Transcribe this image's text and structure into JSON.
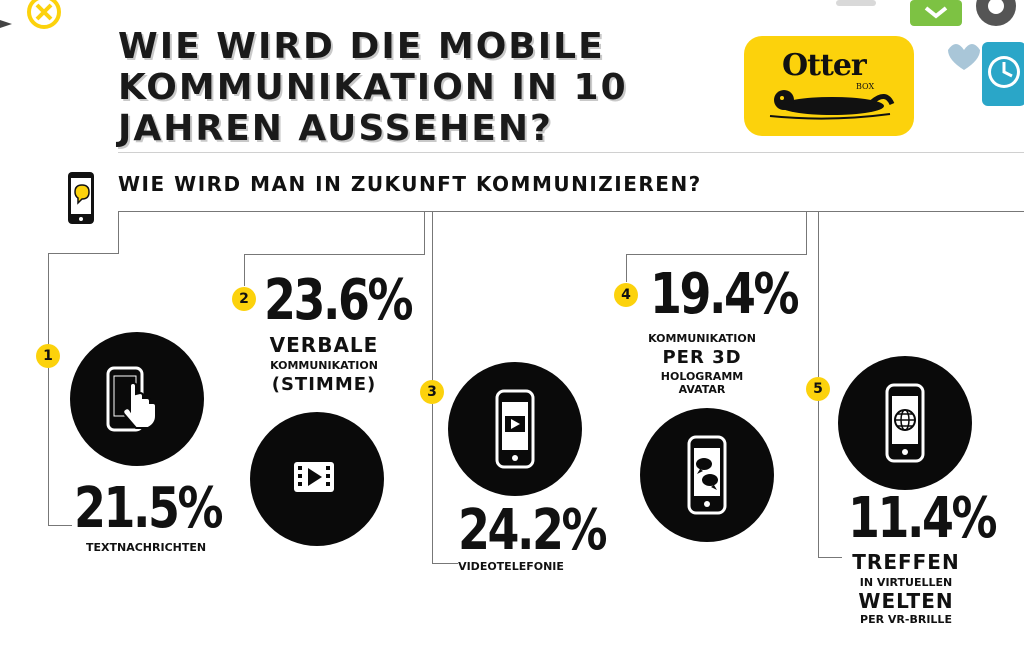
{
  "header": {
    "title_lines": [
      "WIE WIRD DIE MOBILE",
      "KOMMUNIKATION IN 10",
      "JAHREN AUSSEHEN?"
    ],
    "logo_text": "OtterBox",
    "logo_wordmark": "Otter",
    "logo_sub": "BOX"
  },
  "subtitle": "WIE WIRD MAN IN ZUKUNFT KOMMUNIZIEREN?",
  "colors": {
    "accent": "#fcd20c",
    "circle": "#0a0a0a",
    "text": "#111111"
  },
  "chart_data": {
    "type": "table",
    "title": "WIE WIRD MAN IN ZUKUNFT KOMMUNIZIEREN?",
    "series": [
      {
        "rank": "1",
        "value": 21.5,
        "value_label": "21.5%",
        "label": "TEXTNACHRICHTEN",
        "icon": "touch-phone-icon"
      },
      {
        "rank": "2",
        "value": 23.6,
        "value_label": "23.6%",
        "label_lines": [
          "VERBALE",
          "KOMMUNIKATION",
          "(STIMME)"
        ],
        "icon": "video-icon"
      },
      {
        "rank": "3",
        "value": 24.2,
        "value_label": "24.2%",
        "label": "VIDEOTELEFONIE",
        "icon": "video-phone-icon"
      },
      {
        "rank": "4",
        "value": 19.4,
        "value_label": "19.4%",
        "label_lines": [
          "KOMMUNIKATION",
          "PER 3D",
          "HOLOGRAMM",
          "AVATAR"
        ],
        "icon": "chat-phone-icon"
      },
      {
        "rank": "5",
        "value": 11.4,
        "value_label": "11.4%",
        "label_lines": [
          "TREFFEN",
          "IN VIRTUELLEN",
          "WELTEN",
          "PER VR-BRILLE"
        ],
        "icon": "globe-phone-icon"
      }
    ]
  }
}
